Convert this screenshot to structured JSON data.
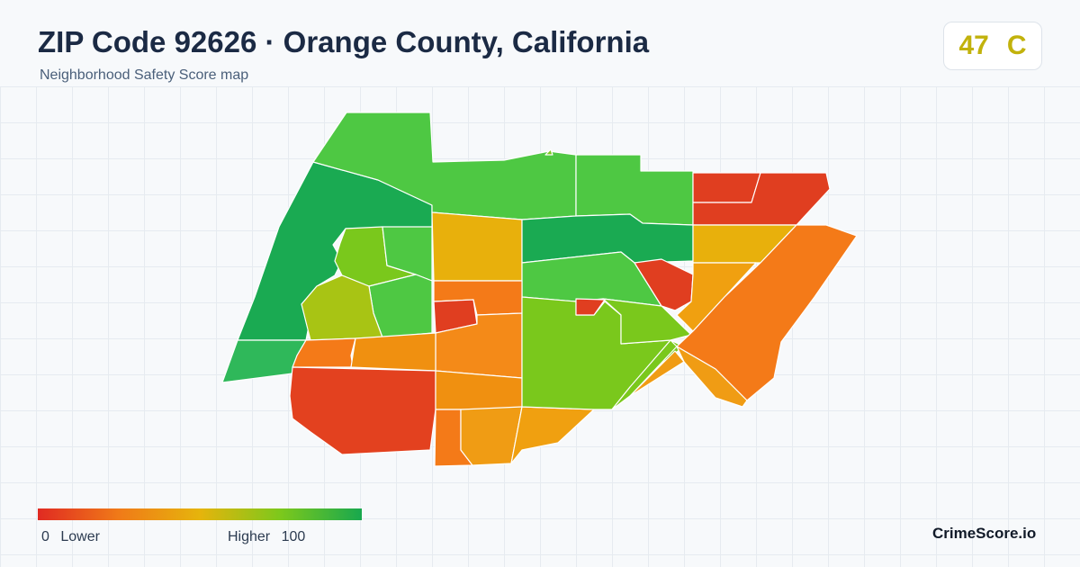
{
  "header": {
    "title": "ZIP Code 92626 · Orange County, California",
    "subtitle": "Neighborhood Safety Score map"
  },
  "score_badge": {
    "score": "47",
    "grade": "C",
    "color": "#c2b20c"
  },
  "legend": {
    "min": "0",
    "min_label": "Lower",
    "max_label": "Higher",
    "max": "100",
    "gradient": [
      "#e02a22",
      "#f07a18",
      "#e6b40c",
      "#7cc81c",
      "#18a84e"
    ]
  },
  "brand": "CrimeScore.io",
  "palette": {
    "red": "#e3411f",
    "orange": "#f47a18",
    "amber": "#f0a010",
    "yellow": "#e8b00c",
    "lime": "#7ac81c",
    "yellowgreen": "#a8c414",
    "green": "#4ec843",
    "darkgreen": "#1aaa52"
  }
}
